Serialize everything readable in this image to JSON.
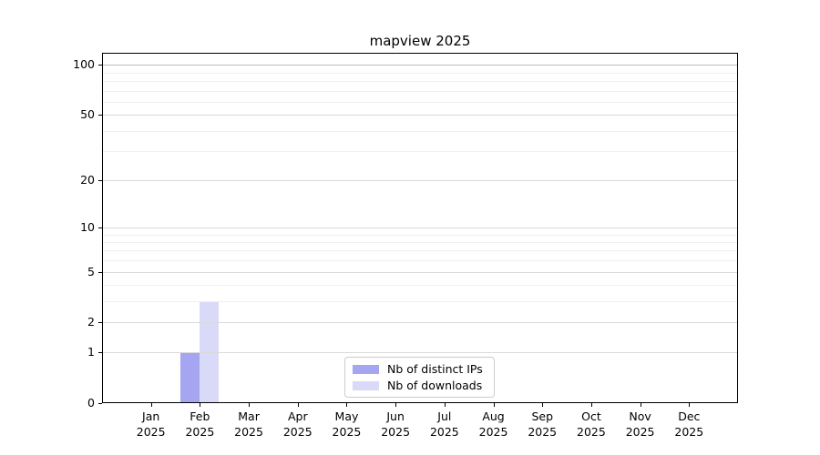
{
  "title": "mapview 2025",
  "chart_data": {
    "type": "bar",
    "title": "mapview 2025",
    "categories": [
      {
        "month": "Jan",
        "year": "2025"
      },
      {
        "month": "Feb",
        "year": "2025"
      },
      {
        "month": "Mar",
        "year": "2025"
      },
      {
        "month": "Apr",
        "year": "2025"
      },
      {
        "month": "May",
        "year": "2025"
      },
      {
        "month": "Jun",
        "year": "2025"
      },
      {
        "month": "Jul",
        "year": "2025"
      },
      {
        "month": "Aug",
        "year": "2025"
      },
      {
        "month": "Sep",
        "year": "2025"
      },
      {
        "month": "Oct",
        "year": "2025"
      },
      {
        "month": "Nov",
        "year": "2025"
      },
      {
        "month": "Dec",
        "year": "2025"
      }
    ],
    "series": [
      {
        "name": "Nb of distinct IPs",
        "color": "#a5a5f1",
        "values": [
          0,
          1,
          0,
          0,
          0,
          0,
          0,
          0,
          0,
          0,
          0,
          0
        ]
      },
      {
        "name": "Nb of downloads",
        "color": "#d9d9f8",
        "values": [
          0,
          3,
          0,
          0,
          0,
          0,
          0,
          0,
          0,
          0,
          0,
          0
        ]
      }
    ],
    "yscale": "log1p",
    "ylim": [
      0,
      118
    ],
    "y_ticks": [
      0,
      1,
      2,
      5,
      10,
      20,
      50,
      100
    ],
    "y_minor_ticks": [
      3,
      4,
      6,
      7,
      8,
      9,
      30,
      40,
      60,
      70,
      80,
      90
    ],
    "xlabel": "",
    "ylabel": "",
    "grid": true,
    "legend_position": "lower-center"
  },
  "legend": {
    "items": [
      {
        "label": "Nb of distinct IPs",
        "color": "#a5a5f1"
      },
      {
        "label": "Nb of downloads",
        "color": "#d9d9f8"
      }
    ]
  },
  "colors": {
    "axis": "#000000",
    "grid_major": "#dadada",
    "grid_minor": "#f0f0f0",
    "grid_top": "#bdbdbd",
    "legend_border": "#cccccc"
  }
}
